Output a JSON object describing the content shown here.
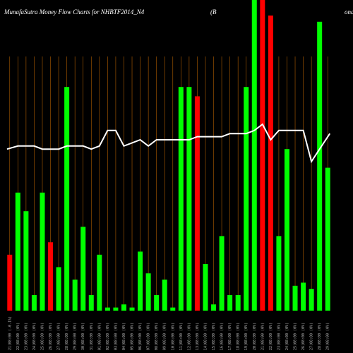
{
  "header": {
    "title_left": "MunafaSutra  Money Flow  Charts for NHBTF2014_N4",
    "title_mid": "(B",
    "title_right": "ona"
  },
  "chart_data": {
    "type": "bar",
    "title": "MunafaSutra  Money Flow  Charts for NHBTF2014_N4",
    "ylim": [
      0,
      100
    ],
    "grid": "vertical",
    "colors": {
      "up": "#00ff00",
      "down": "#ff0000",
      "line": "#ffffff",
      "grid": "#b25e00",
      "background": "#000000"
    },
    "categories": [
      "21(08:00 (-0.1%)",
      "22(08:00 (0%)",
      "23(08:00 (0%)",
      "24(08:00 (0%)",
      "25(08:00 (0%)",
      "26(08:00 (0%)",
      "27(08:00 (0%)",
      "28(08:00 (0%)",
      "29(08:00 (0%)",
      "30(08:00 (0%)",
      "31(08:00 (0%)",
      "01(08:00 (0%)",
      "02(08:00 (0%)",
      "03(08:00 (0%)",
      "04(08:00 (0%)",
      "05(08:00 (0%)",
      "06(08:00 (0%)",
      "07(08:00 (0%)",
      "08(08:00 (0%)",
      "09(08:00 (0%)",
      "10(08:00 (0%)",
      "11(08:00 (0%)",
      "12(08:00 (0%)",
      "13(08:00 (0%)",
      "14(08:00 (0%)",
      "15(08:00 (0%)",
      "16(08:00 (0%)",
      "17(08:00 (0%)",
      "18(08:00 (0%)",
      "19(08:00 (0%)",
      "20(08:00 (0%)",
      "21(08:00 (0%)",
      "22(08:00 (0%)",
      "23(08:00 (0%)",
      "24(08:00 (0%)",
      "25(08:00 (0%)",
      "26(08:00 (0%)",
      "27(08:00 (0%)",
      "28(08:00 (0%)",
      "29(08:00 (0%)"
    ],
    "bars": [
      {
        "value": 18,
        "dir": "down"
      },
      {
        "value": 38,
        "dir": "up"
      },
      {
        "value": 32,
        "dir": "up"
      },
      {
        "value": 5,
        "dir": "up"
      },
      {
        "value": 38,
        "dir": "up"
      },
      {
        "value": 22,
        "dir": "down"
      },
      {
        "value": 14,
        "dir": "up"
      },
      {
        "value": 72,
        "dir": "up"
      },
      {
        "value": 10,
        "dir": "up"
      },
      {
        "value": 27,
        "dir": "up"
      },
      {
        "value": 5,
        "dir": "up"
      },
      {
        "value": 18,
        "dir": "up"
      },
      {
        "value": 1,
        "dir": "up"
      },
      {
        "value": 1,
        "dir": "up"
      },
      {
        "value": 2,
        "dir": "up"
      },
      {
        "value": 1,
        "dir": "up"
      },
      {
        "value": 19,
        "dir": "up"
      },
      {
        "value": 12,
        "dir": "up"
      },
      {
        "value": 5,
        "dir": "up"
      },
      {
        "value": 10,
        "dir": "up"
      },
      {
        "value": 1,
        "dir": "up"
      },
      {
        "value": 72,
        "dir": "up"
      },
      {
        "value": 72,
        "dir": "up"
      },
      {
        "value": 69,
        "dir": "down"
      },
      {
        "value": 15,
        "dir": "up"
      },
      {
        "value": 2,
        "dir": "up"
      },
      {
        "value": 24,
        "dir": "up"
      },
      {
        "value": 5,
        "dir": "up"
      },
      {
        "value": 5,
        "dir": "up"
      },
      {
        "value": 72,
        "dir": "up"
      },
      {
        "value": 100,
        "dir": "up"
      },
      {
        "value": 100,
        "dir": "down"
      },
      {
        "value": 95,
        "dir": "down"
      },
      {
        "value": 24,
        "dir": "up"
      },
      {
        "value": 52,
        "dir": "up"
      },
      {
        "value": 8,
        "dir": "up"
      },
      {
        "value": 9,
        "dir": "up"
      },
      {
        "value": 7,
        "dir": "up"
      },
      {
        "value": 93,
        "dir": "up"
      },
      {
        "value": 46,
        "dir": "up"
      }
    ],
    "line": [
      52,
      53,
      53,
      53,
      52,
      52,
      52,
      53,
      53,
      53,
      52,
      53,
      58,
      58,
      53,
      54,
      55,
      53,
      55,
      55,
      55,
      55,
      55,
      56,
      56,
      56,
      56,
      57,
      57,
      57,
      58,
      60,
      55,
      58,
      58,
      58,
      58,
      48,
      52,
      57
    ]
  }
}
